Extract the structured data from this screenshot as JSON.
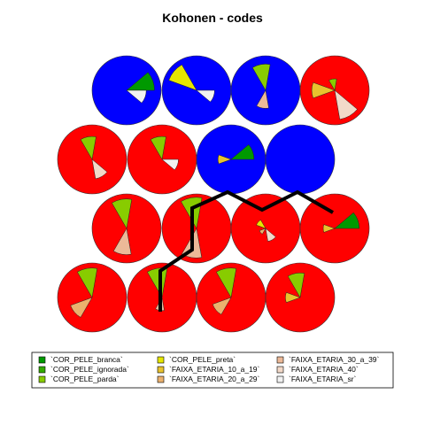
{
  "chart_data": {
    "type": "som-codes",
    "title": "Kohonen - codes",
    "grid": {
      "xdim": 4,
      "ydim": 4,
      "topo": "hexagonal"
    },
    "variables": [
      {
        "name": "`COR_PELE_branca`",
        "color": "#009900"
      },
      {
        "name": "`COR_PELE_ignorada`",
        "color": "#33aa00"
      },
      {
        "name": "`COR_PELE_parda`",
        "color": "#88cc00"
      },
      {
        "name": "`COR_PELE_preta`",
        "color": "#e6e600"
      },
      {
        "name": "`FAIXA_ETARIA_10_a_19`",
        "color": "#e8c32e"
      },
      {
        "name": "`FAIXA_ETARIA_20_a_29`",
        "color": "#ebb16e"
      },
      {
        "name": "`FAIXA_ETARIA_30_a_39`",
        "color": "#ecb998"
      },
      {
        "name": "`FAIXA_ETARIA_40`",
        "color": "#f2d9c8"
      },
      {
        "name": "`FAIXA_ETARIA_sr`",
        "color": "#f2f2f2"
      }
    ],
    "cluster_colors": [
      "#ff0000",
      "#0000ff"
    ],
    "units": [
      {
        "row": 1,
        "col": 1,
        "cluster": 2,
        "codes": [
          0.85,
          0.0,
          0.0,
          0.0,
          0.0,
          0.0,
          0.0,
          0.0,
          0.6
        ]
      },
      {
        "row": 1,
        "col": 2,
        "cluster": 2,
        "codes": [
          0.0,
          0.0,
          0.0,
          0.9,
          0.0,
          0.0,
          0.0,
          0.0,
          0.55
        ]
      },
      {
        "row": 1,
        "col": 3,
        "cluster": 2,
        "codes": [
          0.0,
          0.0,
          0.8,
          0.0,
          0.0,
          0.0,
          0.55,
          0.0,
          0.0
        ]
      },
      {
        "row": 1,
        "col": 4,
        "cluster": 1,
        "codes": [
          0.0,
          0.0,
          0.35,
          0.0,
          0.7,
          0.0,
          0.0,
          0.9,
          0.0
        ]
      },
      {
        "row": 2,
        "col": 1,
        "cluster": 1,
        "codes": [
          0.0,
          0.0,
          0.7,
          0.0,
          0.0,
          0.0,
          0.0,
          0.6,
          0.0
        ]
      },
      {
        "row": 2,
        "col": 2,
        "cluster": 1,
        "codes": [
          0.0,
          0.0,
          0.7,
          0.0,
          0.0,
          0.0,
          0.0,
          0.0,
          0.5
        ]
      },
      {
        "row": 2,
        "col": 3,
        "cluster": 2,
        "codes": [
          0.7,
          0.0,
          0.0,
          0.0,
          0.4,
          0.0,
          0.0,
          0.0,
          0.0
        ]
      },
      {
        "row": 2,
        "col": 4,
        "cluster": 2,
        "codes": [
          0.0,
          0.0,
          0.0,
          0.0,
          0.0,
          0.0,
          0.0,
          0.0,
          0.0
        ]
      },
      {
        "row": 3,
        "col": 1,
        "cluster": 1,
        "codes": [
          0.0,
          0.0,
          0.9,
          0.0,
          0.0,
          0.0,
          0.8,
          0.0,
          0.0
        ]
      },
      {
        "row": 3,
        "col": 2,
        "cluster": 1,
        "codes": [
          0.0,
          0.0,
          0.95,
          0.0,
          0.0,
          0.0,
          0.9,
          0.0,
          0.0
        ]
      },
      {
        "row": 3,
        "col": 3,
        "cluster": 1,
        "codes": [
          0.0,
          0.0,
          0.0,
          0.3,
          0.0,
          0.2,
          0.0,
          0.4,
          0.0
        ]
      },
      {
        "row": 3,
        "col": 4,
        "cluster": 1,
        "codes": [
          0.75,
          0.0,
          0.0,
          0.0,
          0.35,
          0.0,
          0.0,
          0.0,
          0.0
        ]
      },
      {
        "row": 4,
        "col": 1,
        "cluster": 1,
        "codes": [
          0.0,
          0.0,
          0.9,
          0.0,
          0.0,
          0.7,
          0.0,
          0.0,
          0.0
        ]
      },
      {
        "row": 4,
        "col": 2,
        "cluster": 1,
        "codes": [
          0.0,
          0.0,
          0.9,
          0.0,
          0.0,
          0.0,
          0.4,
          0.0,
          0.0
        ]
      },
      {
        "row": 4,
        "col": 3,
        "cluster": 1,
        "codes": [
          0.0,
          0.0,
          0.9,
          0.0,
          0.0,
          0.6,
          0.0,
          0.0,
          0.0
        ]
      },
      {
        "row": 4,
        "col": 4,
        "cluster": 1,
        "codes": [
          0.0,
          0.0,
          0.75,
          0.0,
          0.45,
          0.0,
          0.0,
          0.0,
          0.0
        ]
      }
    ],
    "cluster_boundary": true,
    "legend_position": "bottom"
  }
}
